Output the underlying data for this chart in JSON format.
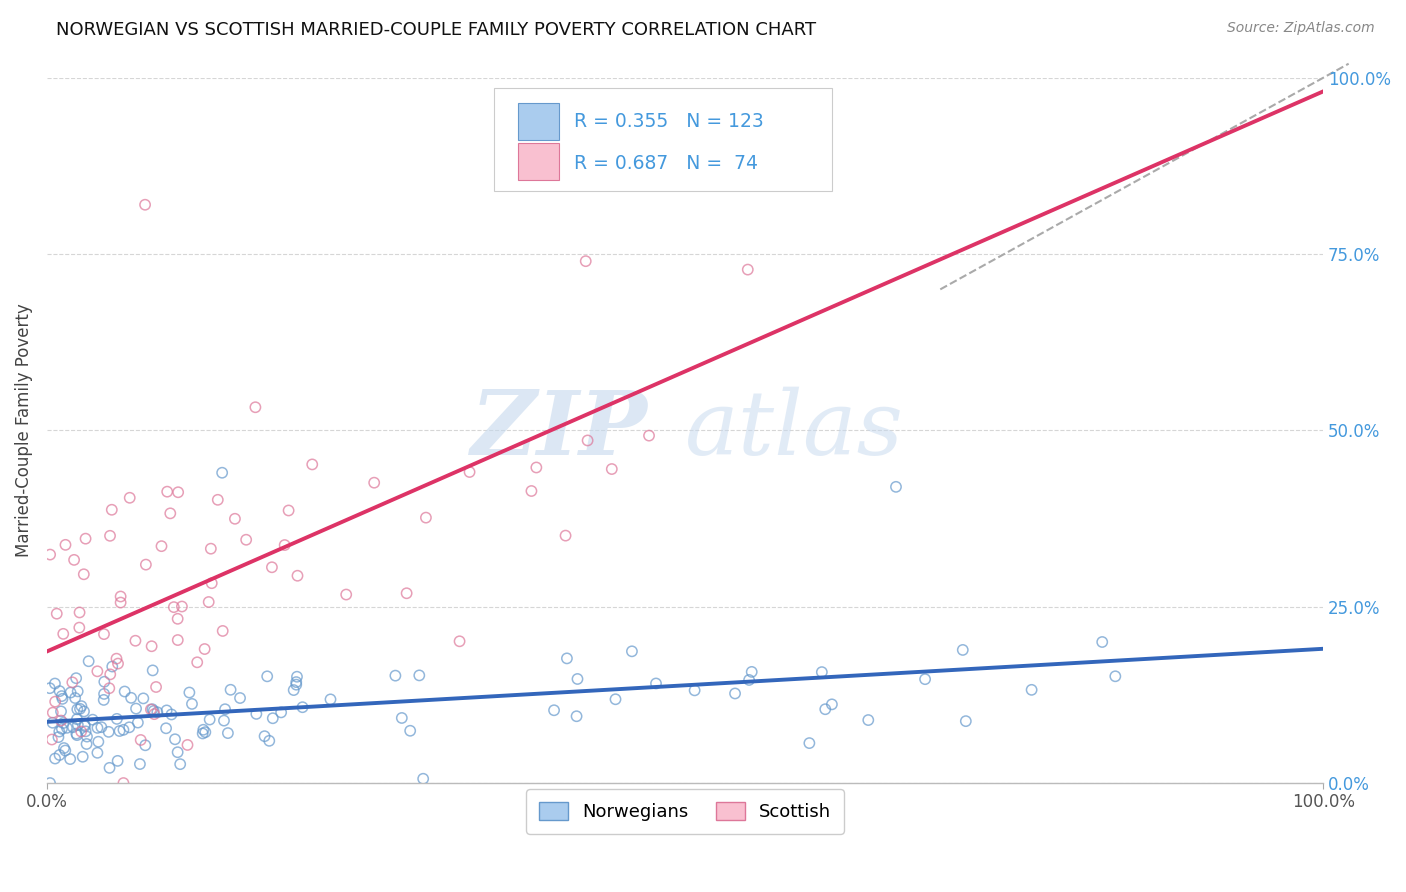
{
  "title": "NORWEGIAN VS SCOTTISH MARRIED-COUPLE FAMILY POVERTY CORRELATION CHART",
  "source": "Source: ZipAtlas.com",
  "ylabel": "Married-Couple Family Poverty",
  "norwegian": {
    "R": 0.355,
    "N": 123,
    "face_color": "#aaccee",
    "edge_color": "#6699cc",
    "line_color": "#3366bb",
    "label": "Norwegians"
  },
  "scottish": {
    "R": 0.687,
    "N": 74,
    "face_color": "#f9c0d0",
    "edge_color": "#dd7799",
    "line_color": "#dd3366",
    "label": "Scottish"
  },
  "background_color": "#ffffff",
  "grid_color": "#cccccc",
  "right_axis_tick_color": "#4499dd",
  "legend_text_color": "#4499dd",
  "title_color": "#111111",
  "source_color": "#888888",
  "watermark_zip_color": "#c5d8ed",
  "watermark_atlas_color": "#c5d8ee",
  "yticks_right": [
    0.0,
    0.25,
    0.5,
    0.75,
    1.0
  ],
  "ytick_labels_right": [
    "0.0%",
    "25.0%",
    "50.0%",
    "75.0%",
    "100.0%"
  ]
}
